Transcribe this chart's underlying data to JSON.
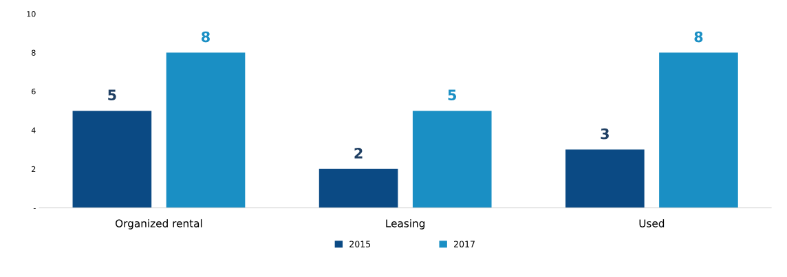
{
  "chart_data": {
    "type": "bar",
    "categories": [
      "Organized rental",
      "Leasing",
      "Used"
    ],
    "series": [
      {
        "name": "2015",
        "color": "#0b4a84",
        "values": [
          5,
          2,
          3
        ]
      },
      {
        "name": "2017",
        "color": "#1a8fc4",
        "values": [
          8,
          5,
          8
        ]
      }
    ],
    "ylim": [
      0,
      10
    ],
    "yticks": [
      {
        "value": 0,
        "label": "-"
      },
      2,
      4,
      6,
      8,
      10
    ],
    "data_labels": true,
    "grid": false,
    "legend": "bottom"
  }
}
